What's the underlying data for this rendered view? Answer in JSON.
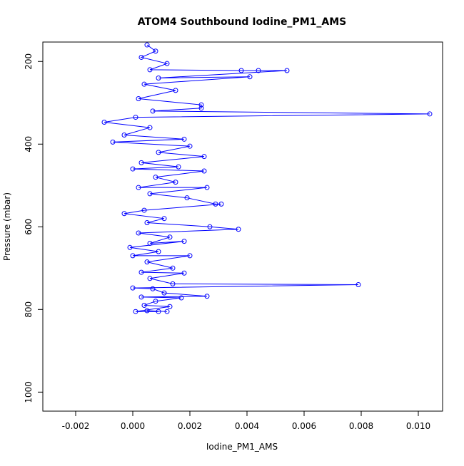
{
  "chart_data": {
    "type": "line",
    "title": "ATOM4 Southbound Iodine_PM1_AMS",
    "xlabel": "Iodine_PM1_AMS",
    "ylabel": "Pressure (mbar)",
    "x": [
      0.0005,
      0.0008,
      0.0003,
      0.0012,
      0.0006,
      0.0038,
      0.0044,
      0.0054,
      0.0009,
      0.0041,
      0.0004,
      0.0015,
      0.0002,
      0.0024,
      0.0024,
      0.0007,
      0.0104,
      0.0001,
      -0.001,
      0.0006,
      -0.0003,
      0.0018,
      -0.0007,
      0.002,
      0.0009,
      0.0025,
      0.0003,
      0.0016,
      0.0,
      0.0025,
      0.0008,
      0.0015,
      0.0002,
      0.0026,
      0.0006,
      0.0019,
      0.0029,
      0.0031,
      0.0004,
      -0.0003,
      0.0011,
      0.0005,
      0.0027,
      0.0037,
      0.0002,
      0.0013,
      0.0006,
      0.0018,
      -0.0001,
      0.0009,
      0.0,
      0.002,
      0.0005,
      0.0014,
      0.0003,
      0.0018,
      0.0006,
      0.0014,
      0.0079,
      0.0,
      0.0007,
      0.0011,
      0.0026,
      0.0003,
      0.0017,
      0.0008,
      0.0004,
      0.0013,
      0.0001,
      0.0009,
      0.0005,
      0.0012
    ],
    "series": [
      {
        "color": "#0000ff",
        "values": [
          160,
          175,
          190,
          205,
          220,
          222,
          222,
          222,
          240,
          237,
          255,
          270,
          290,
          305,
          313,
          320,
          327,
          335,
          347,
          360,
          378,
          388,
          395,
          405,
          420,
          430,
          445,
          455,
          460,
          465,
          480,
          492,
          505,
          505,
          520,
          530,
          545,
          545,
          560,
          568,
          580,
          590,
          600,
          606,
          615,
          625,
          640,
          635,
          650,
          660,
          670,
          670,
          685,
          700,
          710,
          712,
          725,
          738,
          740,
          748,
          750,
          760,
          768,
          770,
          772,
          780,
          790,
          793,
          805,
          805,
          803,
          805
        ]
      }
    ],
    "xlim": [
      -0.00315,
      0.01085
    ],
    "ylim": [
      1046,
      153
    ],
    "xticks": [
      -0.002,
      {
        "value": 0,
        "label": "0.000"
      },
      0.002,
      0.004,
      0.006,
      0.008,
      {
        "value": 0.01,
        "label": "0.010"
      }
    ],
    "yticks": [
      200,
      400,
      600,
      800,
      1000
    ]
  }
}
